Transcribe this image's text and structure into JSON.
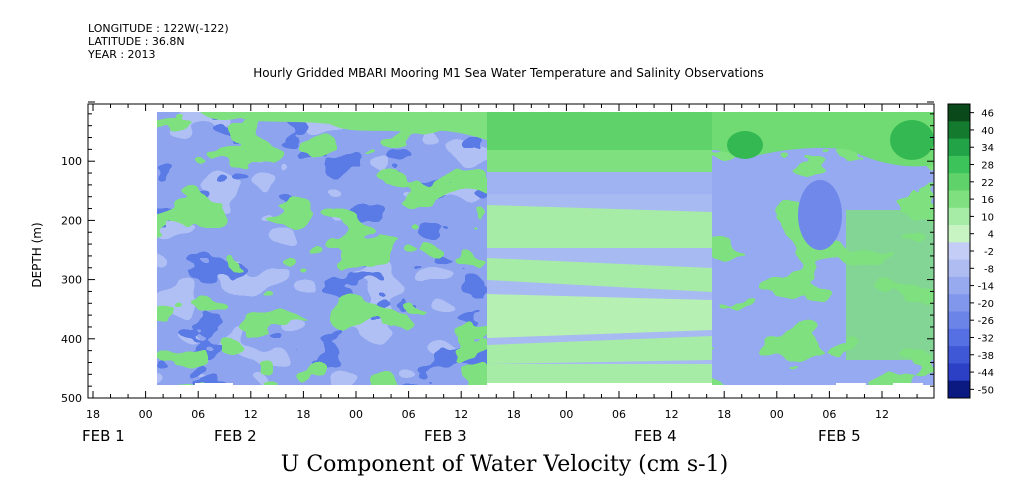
{
  "meta": {
    "longitude": "LONGITUDE : 122W(-122)",
    "latitude": "LATITUDE : 36.8N",
    "year": "YEAR : 2013"
  },
  "chart_data": {
    "type": "heatmap",
    "title": "Hourly Gridded MBARI Mooring M1 Sea Water Temperature and Salinity Observations",
    "xlabel": "U Component of Water Velocity (cm s-1)",
    "ylabel": "DEPTH (m)",
    "x_range_hours_label": [
      "FEB 1 18:00",
      "FEB 5 18:00"
    ],
    "ylim": [
      500,
      0
    ],
    "y_ticks": [
      100,
      200,
      300,
      400,
      500
    ],
    "y_tick_labels": [
      "100",
      "200",
      "300",
      "400",
      "500"
    ],
    "x_tick_labels": [
      "18",
      "00",
      "06",
      "12",
      "18",
      "00",
      "06",
      "12",
      "18",
      "00",
      "06",
      "12",
      "18",
      "00",
      "06",
      "12"
    ],
    "date_labels": [
      "FEB 1",
      "FEB 2",
      "FEB 3",
      "FEB 4",
      "FEB 5"
    ],
    "colorbar": {
      "levels": [
        -50,
        -44,
        -38,
        -32,
        -26,
        -20,
        -14,
        -8,
        -2,
        4,
        10,
        16,
        22,
        28,
        34,
        40,
        46
      ],
      "labels": [
        "46",
        "40",
        "34",
        "28",
        "22",
        "16",
        "10",
        "4",
        "-2",
        "-8",
        "-14",
        "-20",
        "-26",
        "-32",
        "-38",
        "-44",
        "-50"
      ]
    },
    "regions": [
      {
        "time_span": "FEB 2 00:00 - FEB 3 14:00",
        "depth_span": [
          15,
          485
        ],
        "dominant_value_range": [
          -20,
          10
        ],
        "character": "mostly negative (blue), patches of positive (green) at depth"
      },
      {
        "time_span": "FEB 3 14:00 - FEB 4 17:00",
        "depth_span": [
          15,
          485
        ],
        "dominant_value_range": [
          -8,
          16
        ],
        "character": "horizontal bands; positive near surface (0-90 m), alternating near-zero bands below"
      },
      {
        "time_span": "FEB 4 17:00 - FEB 5 18:00",
        "depth_span": [
          15,
          485
        ],
        "dominant_value_range": [
          -20,
          34
        ],
        "character": "strong positive near surface, negative column around FEB 5 06, positive at depth"
      }
    ]
  }
}
